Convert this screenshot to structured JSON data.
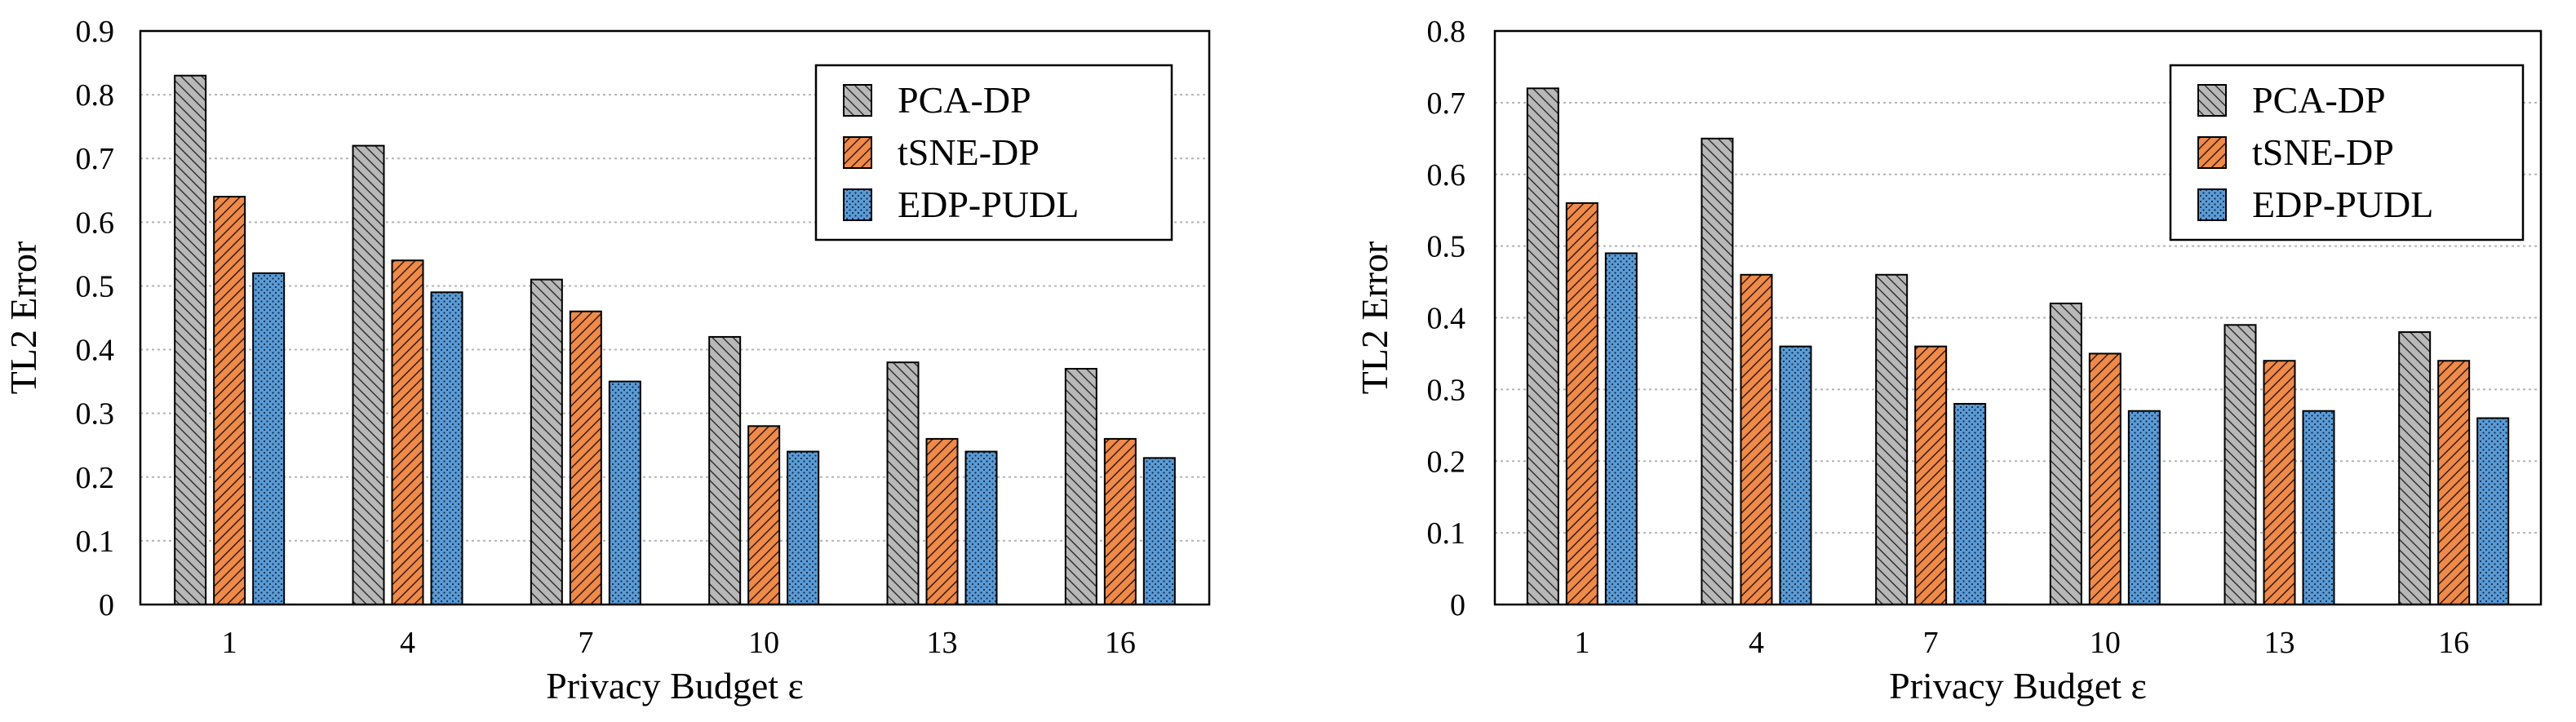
{
  "chart_data": [
    {
      "type": "bar",
      "title": "",
      "xlabel": "Privacy Budget ε",
      "ylabel": "TL2 Error",
      "categories": [
        "1",
        "4",
        "7",
        "10",
        "13",
        "16"
      ],
      "ylim": [
        0,
        0.9
      ],
      "yticks": [
        "0",
        "0.1",
        "0.2",
        "0.3",
        "0.4",
        "0.5",
        "0.6",
        "0.7",
        "0.8",
        "0.9"
      ],
      "grid": true,
      "legend_position": "top-right",
      "series": [
        {
          "name": "PCA-DP",
          "values": [
            0.83,
            0.72,
            0.51,
            0.42,
            0.38,
            0.37
          ]
        },
        {
          "name": "tSNE-DP",
          "values": [
            0.64,
            0.54,
            0.46,
            0.28,
            0.26,
            0.26
          ]
        },
        {
          "name": "EDP-PUDL",
          "values": [
            0.52,
            0.49,
            0.35,
            0.24,
            0.24,
            0.23
          ]
        }
      ]
    },
    {
      "type": "bar",
      "title": "",
      "xlabel": "Privacy Budget ε",
      "ylabel": "TL2 Error",
      "categories": [
        "1",
        "4",
        "7",
        "10",
        "13",
        "16"
      ],
      "ylim": [
        0,
        0.8
      ],
      "yticks": [
        "0",
        "0.1",
        "0.2",
        "0.3",
        "0.4",
        "0.5",
        "0.6",
        "0.7",
        "0.8"
      ],
      "grid": true,
      "legend_position": "top-right",
      "series": [
        {
          "name": "PCA-DP",
          "values": [
            0.72,
            0.65,
            0.46,
            0.42,
            0.39,
            0.38
          ]
        },
        {
          "name": "tSNE-DP",
          "values": [
            0.56,
            0.46,
            0.36,
            0.35,
            0.34,
            0.34
          ]
        },
        {
          "name": "EDP-PUDL",
          "values": [
            0.49,
            0.36,
            0.28,
            0.27,
            0.27,
            0.26
          ]
        }
      ]
    }
  ],
  "series_style": [
    {
      "fill": "#b8b8b8",
      "pattern": "hatch-gray"
    },
    {
      "fill": "#ee8a4a",
      "pattern": "hatch-orange"
    },
    {
      "fill": "#5b9bd5",
      "pattern": "dots-blue"
    }
  ]
}
